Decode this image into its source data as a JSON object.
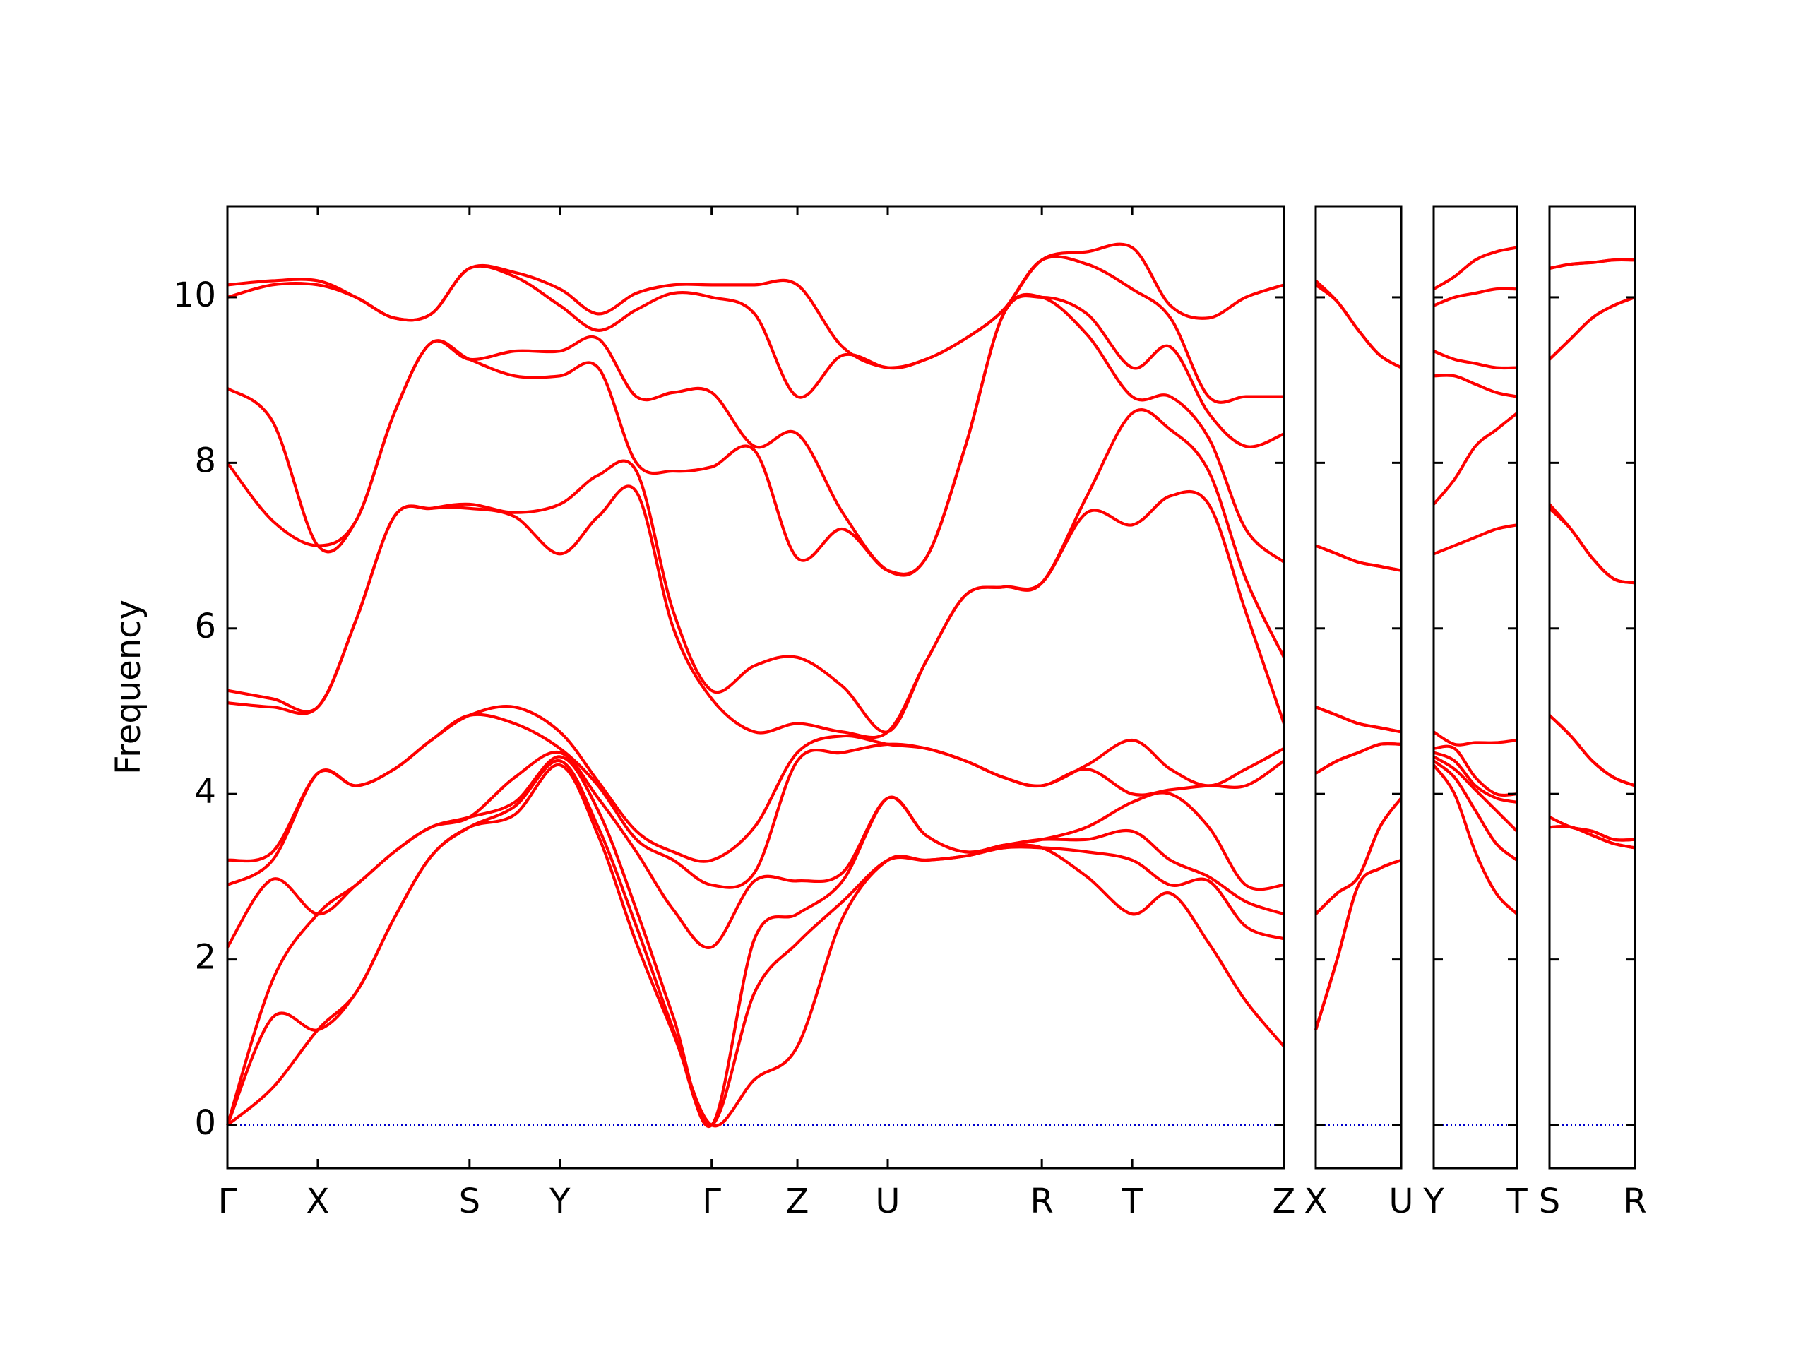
{
  "chart_data": [
    {
      "type": "line",
      "ylabel": "Frequency",
      "color": "#ff0000",
      "hlines": [
        0
      ],
      "hline_color": "#0000cc",
      "xlim": [
        0,
        9.12
      ],
      "ylim": [
        -0.52,
        11.1
      ],
      "yticks": [
        0,
        2,
        4,
        6,
        8,
        10
      ],
      "xticks": [
        {
          "value": 0,
          "label": "Γ"
        },
        {
          "value": 0.78,
          "label": "X"
        },
        {
          "value": 2.09,
          "label": "S"
        },
        {
          "value": 2.87,
          "label": "Y"
        },
        {
          "value": 4.18,
          "label": "Γ"
        },
        {
          "value": 4.92,
          "label": "Z"
        },
        {
          "value": 5.7,
          "label": "U"
        },
        {
          "value": 7.03,
          "label": "R"
        },
        {
          "value": 7.81,
          "label": "T"
        },
        {
          "value": 9.12,
          "label": "Z"
        }
      ],
      "x": [
        0,
        0.39,
        0.78,
        1.11,
        1.44,
        1.76,
        2.09,
        2.48,
        2.87,
        3.2,
        3.53,
        3.85,
        4.18,
        4.55,
        4.92,
        5.31,
        5.7,
        6.03,
        6.37,
        6.7,
        7.03,
        7.42,
        7.81,
        8.14,
        8.47,
        8.79,
        9.12
      ],
      "series": [
        {
          "values": [
            0,
            0.45,
            1.15,
            1.6,
            2.5,
            3.25,
            3.6,
            3.75,
            4.35,
            3.5,
            2.2,
            1.1,
            0,
            0.55,
            0.95,
            2.5,
            3.2,
            3.2,
            3.25,
            3.35,
            3.35,
            3.0,
            2.55,
            2.8,
            2.2,
            1.5,
            0.95
          ]
        },
        {
          "values": [
            0,
            1.3,
            1.15,
            1.6,
            2.5,
            3.25,
            3.6,
            3.85,
            4.4,
            3.6,
            2.4,
            1.15,
            0,
            1.6,
            2.2,
            2.7,
            3.2,
            3.2,
            3.25,
            3.35,
            3.35,
            3.3,
            3.2,
            2.9,
            2.95,
            2.4,
            2.25
          ]
        },
        {
          "values": [
            0,
            1.75,
            2.55,
            2.9,
            3.3,
            3.6,
            3.72,
            3.9,
            4.45,
            3.8,
            2.6,
            1.3,
            0,
            2.25,
            2.55,
            2.95,
            3.95,
            3.5,
            3.3,
            3.38,
            3.45,
            3.45,
            3.55,
            3.2,
            3.0,
            2.7,
            2.55
          ]
        },
        {
          "values": [
            2.15,
            2.97,
            2.55,
            2.9,
            3.3,
            3.6,
            3.72,
            4.2,
            4.5,
            3.95,
            3.3,
            2.6,
            2.15,
            2.95,
            2.95,
            3.05,
            3.95,
            3.5,
            3.3,
            3.38,
            3.45,
            3.6,
            3.9,
            4.0,
            3.6,
            2.9,
            2.9
          ]
        },
        {
          "values": [
            2.9,
            3.2,
            4.25,
            4.1,
            4.3,
            4.65,
            4.95,
            4.85,
            4.55,
            4.1,
            3.45,
            3.2,
            2.9,
            3.05,
            4.4,
            4.5,
            4.6,
            4.55,
            4.4,
            4.2,
            4.1,
            4.3,
            4.0,
            4.05,
            4.1,
            4.1,
            4.4
          ]
        },
        {
          "values": [
            3.2,
            3.3,
            4.25,
            4.1,
            4.3,
            4.65,
            4.95,
            5.05,
            4.75,
            4.15,
            3.55,
            3.3,
            3.2,
            3.6,
            4.5,
            4.7,
            4.6,
            4.55,
            4.4,
            4.2,
            4.1,
            4.35,
            4.65,
            4.3,
            4.1,
            4.3,
            4.55
          ]
        },
        {
          "values": [
            5.1,
            5.05,
            5.05,
            6.1,
            7.35,
            7.45,
            7.45,
            7.35,
            6.9,
            7.35,
            7.65,
            6.0,
            5.15,
            4.75,
            4.85,
            4.75,
            4.75,
            5.6,
            6.4,
            6.5,
            6.55,
            7.4,
            7.25,
            7.6,
            7.5,
            6.2,
            4.85
          ]
        },
        {
          "values": [
            5.25,
            5.15,
            5.05,
            6.1,
            7.35,
            7.45,
            7.5,
            7.4,
            7.5,
            7.85,
            7.9,
            6.2,
            5.25,
            5.55,
            5.65,
            5.3,
            4.75,
            5.6,
            6.4,
            6.5,
            6.55,
            7.6,
            8.6,
            8.4,
            7.9,
            6.6,
            5.65
          ]
        },
        {
          "values": [
            8.0,
            7.3,
            7.0,
            7.3,
            8.6,
            9.45,
            9.25,
            9.05,
            9.05,
            9.15,
            8.0,
            7.9,
            7.95,
            8.15,
            6.85,
            7.2,
            6.7,
            6.85,
            8.2,
            9.8,
            10.0,
            9.55,
            8.8,
            8.8,
            8.3,
            7.2,
            6.8
          ]
        },
        {
          "values": [
            8.9,
            8.5,
            7.0,
            7.3,
            8.6,
            9.45,
            9.25,
            9.35,
            9.35,
            9.5,
            8.8,
            8.85,
            8.85,
            8.2,
            8.35,
            7.4,
            6.7,
            6.85,
            8.2,
            9.8,
            10.0,
            9.8,
            9.15,
            9.4,
            8.6,
            8.2,
            8.35
          ]
        },
        {
          "values": [
            10.0,
            10.15,
            10.15,
            10.0,
            9.75,
            9.8,
            10.35,
            10.25,
            9.9,
            9.6,
            9.85,
            10.05,
            10.0,
            9.8,
            8.8,
            9.3,
            9.15,
            9.25,
            9.5,
            9.85,
            10.45,
            10.4,
            10.1,
            9.75,
            8.8,
            8.8,
            8.8
          ]
        },
        {
          "values": [
            10.15,
            10.2,
            10.2,
            10.0,
            9.75,
            9.8,
            10.35,
            10.3,
            10.1,
            9.8,
            10.05,
            10.15,
            10.15,
            10.15,
            10.15,
            9.4,
            9.15,
            9.25,
            9.5,
            9.85,
            10.45,
            10.55,
            10.6,
            9.9,
            9.75,
            10.0,
            10.15
          ]
        }
      ]
    },
    {
      "type": "line",
      "color": "#ff0000",
      "hlines": [
        0
      ],
      "hline_color": "#0000cc",
      "xlim": [
        0,
        0.74
      ],
      "ylim": [
        -0.52,
        11.1
      ],
      "yticks": [
        0,
        2,
        4,
        6,
        8,
        10
      ],
      "xticks": [
        {
          "value": 0,
          "label": "X"
        },
        {
          "value": 0.74,
          "label": "U"
        }
      ],
      "x": [
        0,
        0.185,
        0.37,
        0.555,
        0.74
      ],
      "series": [
        {
          "values": [
            1.15,
            2.0,
            2.9,
            3.1,
            3.2
          ]
        },
        {
          "values": [
            1.15,
            2.0,
            2.9,
            3.1,
            3.2
          ]
        },
        {
          "values": [
            2.55,
            2.8,
            3.0,
            3.6,
            3.95
          ]
        },
        {
          "values": [
            2.55,
            2.8,
            3.0,
            3.6,
            3.95
          ]
        },
        {
          "values": [
            4.25,
            4.4,
            4.5,
            4.6,
            4.6
          ]
        },
        {
          "values": [
            4.25,
            4.4,
            4.5,
            4.6,
            4.6
          ]
        },
        {
          "values": [
            5.05,
            4.95,
            4.85,
            4.8,
            4.75
          ]
        },
        {
          "values": [
            5.05,
            4.95,
            4.85,
            4.8,
            4.75
          ]
        },
        {
          "values": [
            7.0,
            6.9,
            6.8,
            6.75,
            6.7
          ]
        },
        {
          "values": [
            7.0,
            6.9,
            6.8,
            6.75,
            6.7
          ]
        },
        {
          "values": [
            10.15,
            9.95,
            9.6,
            9.3,
            9.15
          ]
        },
        {
          "values": [
            10.2,
            9.95,
            9.6,
            9.3,
            9.15
          ]
        }
      ]
    },
    {
      "type": "line",
      "color": "#ff0000",
      "hlines": [
        0
      ],
      "hline_color": "#0000cc",
      "xlim": [
        0,
        0.72
      ],
      "ylim": [
        -0.52,
        11.1
      ],
      "yticks": [
        0,
        2,
        4,
        6,
        8,
        10
      ],
      "xticks": [
        {
          "value": 0,
          "label": "Y"
        },
        {
          "value": 0.72,
          "label": "T"
        }
      ],
      "x": [
        0,
        0.18,
        0.36,
        0.54,
        0.72
      ],
      "series": [
        {
          "values": [
            4.35,
            4.0,
            3.3,
            2.8,
            2.55
          ]
        },
        {
          "values": [
            4.4,
            4.2,
            3.8,
            3.4,
            3.2
          ]
        },
        {
          "values": [
            4.45,
            4.3,
            4.05,
            3.8,
            3.55
          ]
        },
        {
          "values": [
            4.5,
            4.4,
            4.1,
            3.95,
            3.9
          ]
        },
        {
          "values": [
            4.55,
            4.55,
            4.2,
            4.0,
            4.0
          ]
        },
        {
          "values": [
            4.75,
            4.6,
            4.62,
            4.62,
            4.65
          ]
        },
        {
          "values": [
            6.9,
            7.0,
            7.1,
            7.2,
            7.25
          ]
        },
        {
          "values": [
            7.5,
            7.8,
            8.2,
            8.4,
            8.6
          ]
        },
        {
          "values": [
            9.05,
            9.05,
            8.95,
            8.85,
            8.8
          ]
        },
        {
          "values": [
            9.35,
            9.25,
            9.2,
            9.15,
            9.15
          ]
        },
        {
          "values": [
            9.9,
            10.0,
            10.05,
            10.1,
            10.1
          ]
        },
        {
          "values": [
            10.1,
            10.25,
            10.45,
            10.55,
            10.6
          ]
        }
      ]
    },
    {
      "type": "line",
      "color": "#ff0000",
      "hlines": [
        0
      ],
      "hline_color": "#0000cc",
      "xlim": [
        0,
        0.74
      ],
      "ylim": [
        -0.52,
        11.1
      ],
      "yticks": [
        0,
        2,
        4,
        6,
        8,
        10
      ],
      "xticks": [
        {
          "value": 0,
          "label": "S"
        },
        {
          "value": 0.74,
          "label": "R"
        }
      ],
      "x": [
        0,
        0.185,
        0.37,
        0.555,
        0.74
      ],
      "series": [
        {
          "values": [
            3.6,
            3.6,
            3.5,
            3.4,
            3.35
          ]
        },
        {
          "values": [
            3.6,
            3.6,
            3.5,
            3.4,
            3.35
          ]
        },
        {
          "values": [
            3.72,
            3.6,
            3.55,
            3.45,
            3.45
          ]
        },
        {
          "values": [
            3.72,
            3.6,
            3.55,
            3.45,
            3.45
          ]
        },
        {
          "values": [
            4.95,
            4.7,
            4.4,
            4.2,
            4.1
          ]
        },
        {
          "values": [
            4.95,
            4.7,
            4.4,
            4.2,
            4.1
          ]
        },
        {
          "values": [
            7.45,
            7.2,
            6.85,
            6.6,
            6.55
          ]
        },
        {
          "values": [
            7.5,
            7.2,
            6.85,
            6.6,
            6.55
          ]
        },
        {
          "values": [
            9.25,
            9.5,
            9.75,
            9.9,
            10.0
          ]
        },
        {
          "values": [
            9.25,
            9.5,
            9.75,
            9.9,
            10.0
          ]
        },
        {
          "values": [
            10.35,
            10.4,
            10.42,
            10.45,
            10.45
          ]
        },
        {
          "values": [
            10.35,
            10.4,
            10.42,
            10.45,
            10.45
          ]
        }
      ]
    }
  ]
}
